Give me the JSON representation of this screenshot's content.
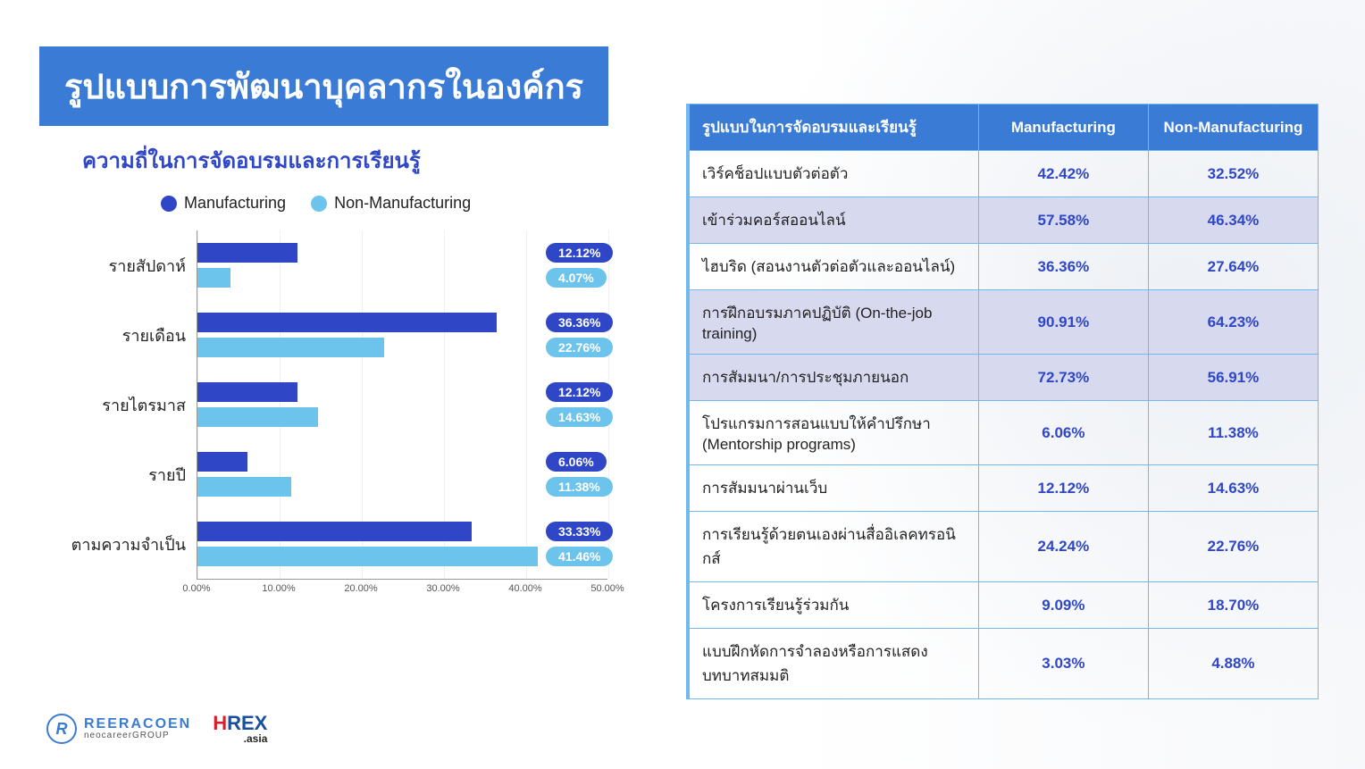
{
  "title": "รูปแบบการพัฒนาบุคลากรในองค์กร",
  "colors": {
    "title_bg": "#3a7bd5",
    "manufacturing": "#2f47c7",
    "non_manufacturing": "#6cc3ec",
    "pill_mfg": "#2f47c7",
    "pill_non": "#6cc3ec",
    "table_header_bg": "#3a7bd5",
    "table_highlight_bg": "#d7d9ef",
    "chart_title_color": "#2f47c7",
    "table_value_color": "#2f47c7"
  },
  "chart": {
    "title": "ความถี่ในการจัดอบรมและการเรียนรู้",
    "legend": {
      "mfg": "Manufacturing",
      "non": "Non-Manufacturing"
    },
    "xmax": 50,
    "xticks": [
      "0.00%",
      "10.00%",
      "20.00%",
      "30.00%",
      "40.00%",
      "50.00%"
    ],
    "categories": [
      {
        "label": "รายสัปดาห์",
        "mfg": 12.12,
        "non": 4.07,
        "mfg_label": "12.12%",
        "non_label": "4.07%"
      },
      {
        "label": "รายเดือน",
        "mfg": 36.36,
        "non": 22.76,
        "mfg_label": "36.36%",
        "non_label": "22.76%"
      },
      {
        "label": "รายไตรมาส",
        "mfg": 12.12,
        "non": 14.63,
        "mfg_label": "12.12%",
        "non_label": "14.63%"
      },
      {
        "label": "รายปี",
        "mfg": 6.06,
        "non": 11.38,
        "mfg_label": "6.06%",
        "non_label": "11.38%"
      },
      {
        "label": "ตามความจำเป็น",
        "mfg": 33.33,
        "non": 41.46,
        "mfg_label": "33.33%",
        "non_label": "41.46%"
      }
    ]
  },
  "table": {
    "headers": [
      "รูปแบบในการจัดอบรมและเรียนรู้",
      "Manufacturing",
      "Non-Manufacturing"
    ],
    "rows": [
      {
        "label": "เวิร์คช็อปแบบตัวต่อตัว",
        "mfg": "42.42%",
        "non": "32.52%",
        "hl": false
      },
      {
        "label": "เข้าร่วมคอร์สออนไลน์",
        "mfg": "57.58%",
        "non": "46.34%",
        "hl": true
      },
      {
        "label": "ไฮบริด (สอนงานตัวต่อตัวและออนไลน์)",
        "mfg": "36.36%",
        "non": "27.64%",
        "hl": false
      },
      {
        "label": "การฝึกอบรมภาคปฏิบัติ (On-the-job training)",
        "mfg": "90.91%",
        "non": "64.23%",
        "hl": true
      },
      {
        "label": "การสัมมนา/การประชุมภายนอก",
        "mfg": "72.73%",
        "non": "56.91%",
        "hl": true
      },
      {
        "label": "โปรแกรมการสอนแบบให้คำปรึกษา (Mentorship programs)",
        "mfg": "6.06%",
        "non": "11.38%",
        "hl": false
      },
      {
        "label": "การสัมมนาผ่านเว็บ",
        "mfg": "12.12%",
        "non": "14.63%",
        "hl": false
      },
      {
        "label": "การเรียนรู้ด้วยตนเองผ่านสื่ออิเลคทรอนิกส์",
        "mfg": "24.24%",
        "non": "22.76%",
        "hl": false
      },
      {
        "label": "โครงการเรียนรู้ร่วมกัน",
        "mfg": "9.09%",
        "non": "18.70%",
        "hl": false
      },
      {
        "label": "แบบฝึกหัดการจำลองหรือการแสดงบทบาทสมมติ",
        "mfg": "3.03%",
        "non": "4.88%",
        "hl": false
      }
    ]
  },
  "logos": {
    "reeracoen": {
      "line1": "REERACOEN",
      "line2": "neocareerGROUP"
    },
    "hrex": {
      "main": "HREX",
      "sub": ".asia"
    }
  }
}
